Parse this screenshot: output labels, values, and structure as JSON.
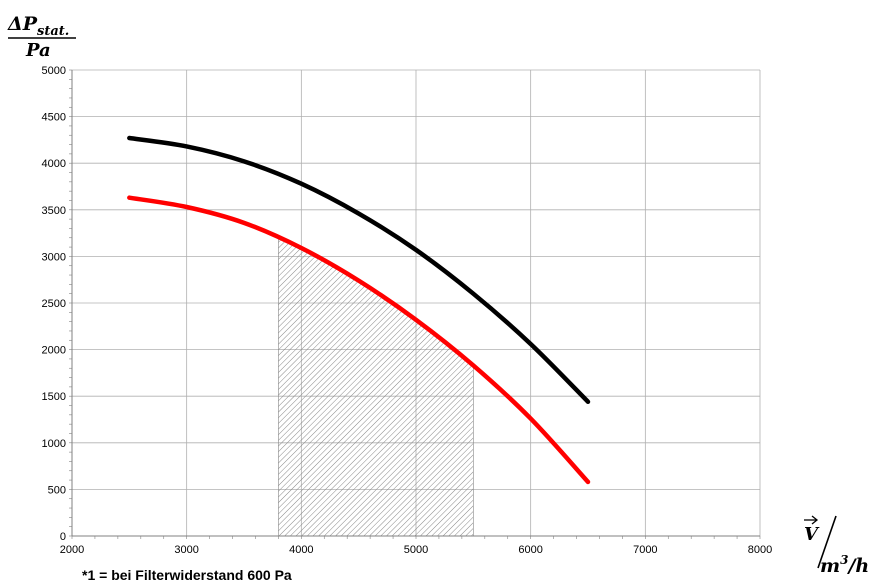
{
  "chart_data": {
    "type": "line",
    "ylabel": {
      "base": "ΔP",
      "sub": "stat.",
      "unit": "Pa"
    },
    "xlabel": {
      "base": "V",
      "unit_base": "m",
      "unit_exp": "3",
      "unit_tail": "/h"
    },
    "xlim": [
      2000,
      8000
    ],
    "ylim": [
      0,
      5000
    ],
    "xticks": [
      2000,
      3000,
      4000,
      5000,
      6000,
      7000,
      8000
    ],
    "yticks": [
      0,
      500,
      1000,
      1500,
      2000,
      2500,
      3000,
      3500,
      4000,
      4500,
      5000
    ],
    "grid": true,
    "legend": "none",
    "series": [
      {
        "color": "#000000",
        "x": [
          2500,
          3000,
          3500,
          4000,
          4500,
          5000,
          5500,
          6000,
          6500
        ],
        "y": [
          4270,
          4180,
          4020,
          3780,
          3460,
          3070,
          2600,
          2060,
          1440
        ]
      },
      {
        "color": "#ff0000",
        "x": [
          2500,
          3000,
          3500,
          4000,
          4500,
          5000,
          5500,
          6000,
          6500
        ],
        "y": [
          3630,
          3530,
          3360,
          3090,
          2740,
          2320,
          1830,
          1260,
          580
        ]
      }
    ],
    "shaded_region": {
      "x_min": 3800,
      "x_max": 5500,
      "follows_series": 1,
      "pattern": "diagonal-hatch",
      "color": "#888888"
    },
    "annotation": "*1 = bei Filterwiderstand 600 Pa"
  }
}
